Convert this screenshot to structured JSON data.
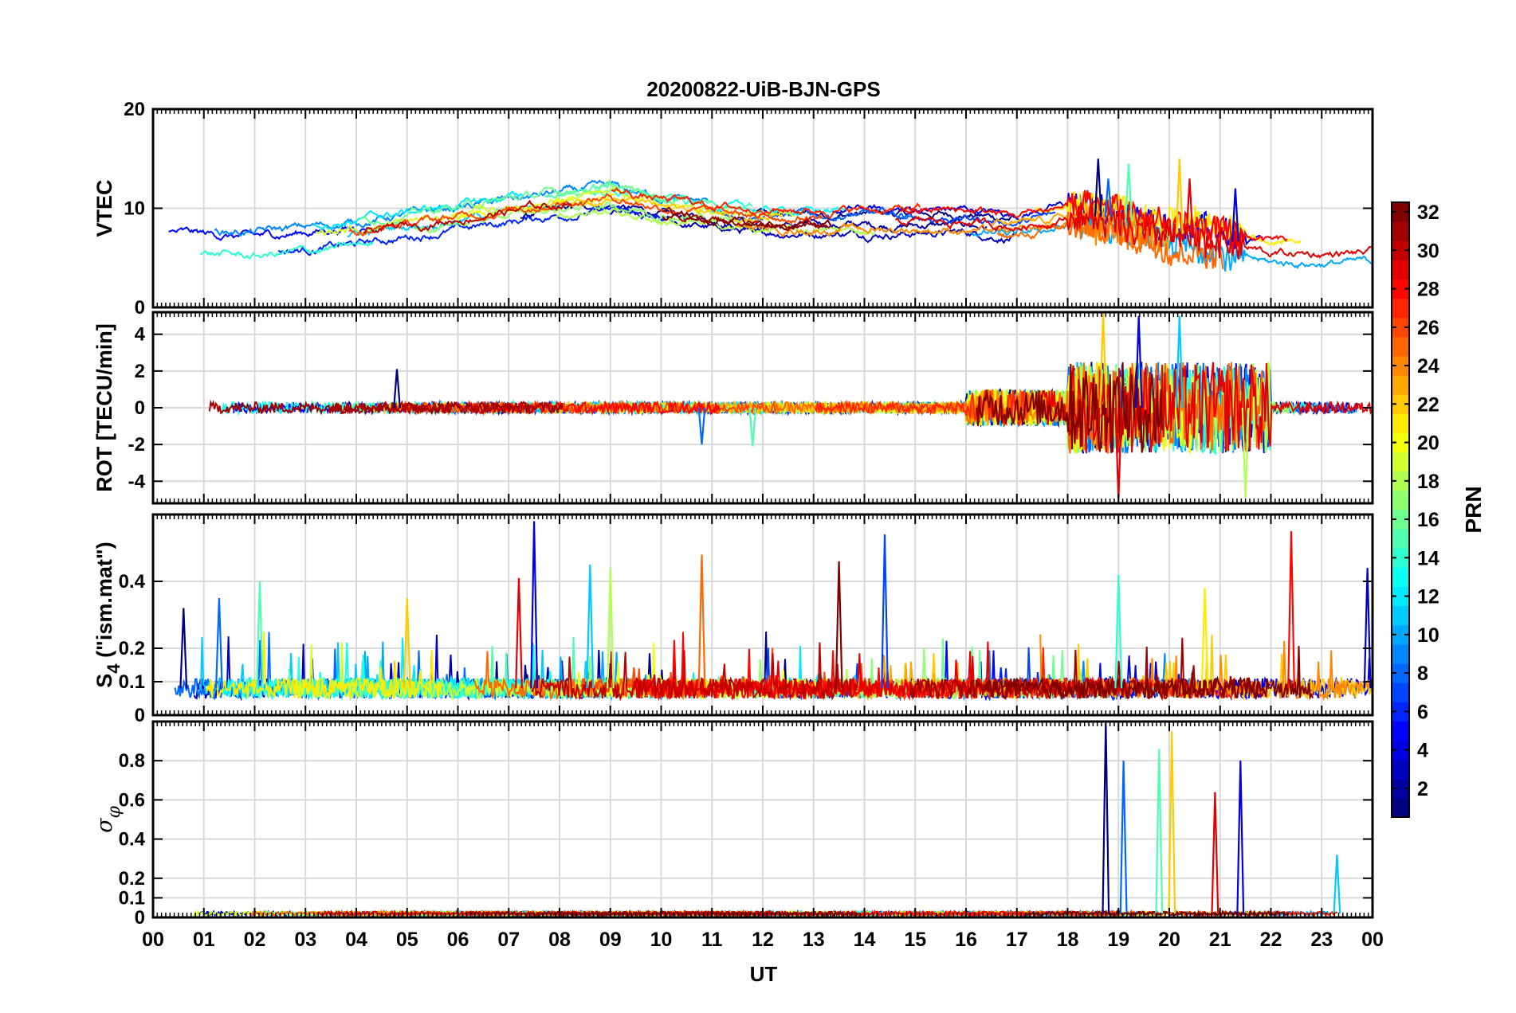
{
  "chart_data": {
    "type": "line",
    "title": "20200822-UiB-BJN-GPS",
    "xlabel": "UT",
    "x_ticks": [
      "00",
      "01",
      "02",
      "03",
      "04",
      "05",
      "06",
      "07",
      "08",
      "09",
      "10",
      "11",
      "12",
      "13",
      "14",
      "15",
      "16",
      "17",
      "18",
      "19",
      "20",
      "21",
      "22",
      "23",
      "00"
    ],
    "xlim": [
      0,
      24
    ],
    "panels": [
      {
        "id": "vtec",
        "ylabel": "VTEC",
        "ylim": [
          0,
          20
        ],
        "y_ticks": [
          0,
          10,
          20
        ],
        "y_tick_labels": [
          "0",
          "10",
          "20"
        ],
        "baseline": [
          [
            0,
            7
          ],
          [
            2,
            6.5
          ],
          [
            4,
            7.5
          ],
          [
            6,
            9
          ],
          [
            8,
            10.5
          ],
          [
            9,
            11
          ],
          [
            10,
            10
          ],
          [
            12,
            9
          ],
          [
            14,
            9
          ],
          [
            16,
            9
          ],
          [
            17,
            8.5
          ],
          [
            18,
            9.5
          ],
          [
            19,
            9
          ],
          [
            20,
            7.5
          ],
          [
            21,
            7
          ],
          [
            22,
            5.8
          ],
          [
            24,
            5.8
          ]
        ],
        "noise": 0.9,
        "spikes": [
          [
            18.6,
            15
          ],
          [
            18.8,
            13
          ],
          [
            19.2,
            14.5
          ],
          [
            20.2,
            15
          ],
          [
            20.4,
            13
          ],
          [
            21.3,
            12
          ]
        ]
      },
      {
        "id": "rot",
        "ylabel": "ROT [TECU/min]",
        "ylim": [
          -5.2,
          5.2
        ],
        "y_ticks": [
          -4,
          -2,
          0,
          2,
          4
        ],
        "y_tick_labels": [
          "-4",
          "-2",
          "0",
          "2",
          "4"
        ],
        "baseline": [
          [
            0,
            0
          ],
          [
            24,
            0
          ]
        ],
        "noise": 0.3,
        "disturbed": [
          [
            16,
            18,
            1.0
          ],
          [
            18,
            22,
            2.5
          ]
        ],
        "spikes": [
          [
            4.8,
            2.1
          ],
          [
            10.8,
            -2
          ],
          [
            11.8,
            -2.1
          ],
          [
            18.7,
            5.2
          ],
          [
            19.0,
            -5
          ],
          [
            19.4,
            5
          ],
          [
            20.2,
            5
          ],
          [
            21.5,
            -4.9
          ]
        ]
      },
      {
        "id": "s4",
        "ylabel": "S4 (\"ism.mat\")",
        "ylabel_main": "S",
        "ylabel_sub": "4",
        "ylabel_rest": " (\"ism.mat\")",
        "ylim": [
          0,
          0.6
        ],
        "y_ticks": [
          0,
          0.1,
          0.2,
          0.4
        ],
        "y_tick_labels": [
          "0",
          "0.1",
          "0.2",
          "0.4"
        ],
        "baseline": [
          [
            0,
            0.08
          ],
          [
            24,
            0.08
          ]
        ],
        "noise": 0.04,
        "spikes": [
          [
            0.6,
            0.32
          ],
          [
            1.3,
            0.35
          ],
          [
            2.1,
            0.4
          ],
          [
            5.0,
            0.35
          ],
          [
            7.2,
            0.41
          ],
          [
            7.5,
            0.58
          ],
          [
            8.6,
            0.45
          ],
          [
            9.0,
            0.44
          ],
          [
            10.8,
            0.48
          ],
          [
            13.5,
            0.46
          ],
          [
            14.4,
            0.54
          ],
          [
            19.0,
            0.42
          ],
          [
            20.7,
            0.38
          ],
          [
            22.4,
            0.55
          ],
          [
            23.9,
            0.44
          ]
        ]
      },
      {
        "id": "sigma",
        "ylabel": "σφ",
        "ylabel_main": "σ",
        "ylabel_sub": "φ",
        "ylim": [
          0,
          1.0
        ],
        "y_ticks": [
          0,
          0.1,
          0.2,
          0.4,
          0.6,
          0.8
        ],
        "y_tick_labels": [
          "0",
          "0.1",
          "0.2",
          "0.4",
          "0.6",
          "0.8"
        ],
        "baseline": [
          [
            0,
            0.02
          ],
          [
            24,
            0.02
          ]
        ],
        "noise": 0.01,
        "spikes": [
          [
            18.75,
            1.0
          ],
          [
            19.1,
            0.8
          ],
          [
            19.8,
            0.86
          ],
          [
            20.05,
            0.95
          ],
          [
            20.9,
            0.64
          ],
          [
            21.4,
            0.8
          ],
          [
            23.3,
            0.32
          ]
        ]
      }
    ],
    "series_count": 32,
    "colorbar": {
      "label": "PRN",
      "range": [
        1,
        32
      ],
      "ticks": [
        2,
        4,
        6,
        8,
        10,
        12,
        14,
        16,
        18,
        20,
        22,
        24,
        26,
        28,
        30,
        32
      ],
      "colormap": "jet"
    },
    "grid": true
  }
}
